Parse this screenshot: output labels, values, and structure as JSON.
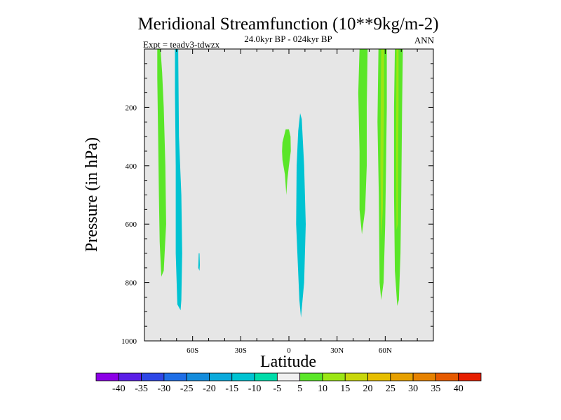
{
  "chart_data": {
    "type": "contour",
    "title": "Meridional Streamfunction (10**9kg/m-2)",
    "subtitle": "24.0kyr BP - 024kyr BP",
    "left_label": "Expt = teady3-tdwzx",
    "right_label": "ANN",
    "xlabel": "Latitude",
    "ylabel": "Pressure (in hPa)",
    "xlim": [
      -90,
      90
    ],
    "ylim": [
      1000,
      0
    ],
    "x_ticks": [
      {
        "value": -60,
        "label": "60S"
      },
      {
        "value": -30,
        "label": "30S"
      },
      {
        "value": 0,
        "label": "0"
      },
      {
        "value": 30,
        "label": "30N"
      },
      {
        "value": 60,
        "label": "60N"
      }
    ],
    "y_ticks": [
      {
        "value": 200,
        "label": "200"
      },
      {
        "value": 400,
        "label": "400"
      },
      {
        "value": 600,
        "label": "600"
      },
      {
        "value": 800,
        "label": "800"
      },
      {
        "value": 1000,
        "label": "1000"
      }
    ],
    "background_color": "#e6e6e6",
    "colorbar": {
      "colors": [
        "#8c00e6",
        "#5a1ee6",
        "#2d46e6",
        "#1e6ee6",
        "#148cdc",
        "#0aaadc",
        "#00c3d2",
        "#00dcaa",
        "#f0f0f0",
        "#5ae628",
        "#9be614",
        "#c8d70a",
        "#e6be00",
        "#e6a000",
        "#e68200",
        "#e65a00",
        "#e61e00"
      ],
      "labels": [
        "-40",
        "-35",
        "-30",
        "-25",
        "-20",
        "-15",
        "-10",
        "-5",
        "5",
        "10",
        "15",
        "20",
        "25",
        "30",
        "35",
        "40"
      ]
    },
    "features": [
      {
        "name": "sh-high-lat-positive",
        "level": 10,
        "color": "#5ae628",
        "outline": [
          [
            -82,
            0
          ],
          [
            -80,
            0
          ],
          [
            -79,
            80
          ],
          [
            -78,
            200
          ],
          [
            -77,
            400
          ],
          [
            -76.5,
            600
          ],
          [
            -78,
            760
          ],
          [
            -79.5,
            780
          ],
          [
            -80.5,
            660
          ],
          [
            -81,
            500
          ],
          [
            -81.5,
            300
          ],
          [
            -82,
            100
          ]
        ]
      },
      {
        "name": "sh-high-lat-negative",
        "level": -10,
        "color": "#00c3d2",
        "outline": [
          [
            -71,
            0
          ],
          [
            -69,
            0
          ],
          [
            -68.5,
            300
          ],
          [
            -67,
            500
          ],
          [
            -66.5,
            700
          ],
          [
            -67,
            860
          ],
          [
            -67.5,
            895
          ],
          [
            -69.5,
            875
          ],
          [
            -70.5,
            700
          ],
          [
            -70.5,
            400
          ],
          [
            -71,
            150
          ]
        ]
      },
      {
        "name": "sh-mid-lat-negative-small",
        "level": -10,
        "color": "#00c3d2",
        "outline": [
          [
            -56.2,
            700
          ],
          [
            -55.7,
            700
          ],
          [
            -55.5,
            740
          ],
          [
            -55.7,
            760
          ],
          [
            -56.5,
            750
          ]
        ]
      },
      {
        "name": "equatorial-positive",
        "level": 10,
        "color": "#5ae628",
        "outline": [
          [
            -4,
            320
          ],
          [
            -2,
            275
          ],
          [
            0,
            275
          ],
          [
            1,
            300
          ],
          [
            1.2,
            350
          ],
          [
            0,
            400
          ],
          [
            -1,
            450
          ],
          [
            -1.6,
            500
          ],
          [
            -2.5,
            430
          ],
          [
            -4,
            380
          ],
          [
            -4.3,
            350
          ]
        ]
      },
      {
        "name": "equatorial-negative",
        "level": -10,
        "color": "#00c3d2",
        "outline": [
          [
            7,
            220
          ],
          [
            8,
            240
          ],
          [
            9.5,
            400
          ],
          [
            10.5,
            600
          ],
          [
            9.5,
            800
          ],
          [
            7.5,
            920
          ],
          [
            6.5,
            860
          ],
          [
            4.5,
            600
          ],
          [
            4.8,
            400
          ],
          [
            5.8,
            280
          ]
        ]
      },
      {
        "name": "nh-mid-lat-positive",
        "level": 10,
        "color": "#5ae628",
        "outline": [
          [
            44,
            0
          ],
          [
            49,
            0
          ],
          [
            48.5,
            200
          ],
          [
            48.5,
            400
          ],
          [
            47.5,
            550
          ],
          [
            45.5,
            635
          ],
          [
            44,
            550
          ],
          [
            44,
            350
          ],
          [
            43.2,
            150
          ]
        ]
      },
      {
        "name": "nh-60n-positive",
        "level": 10,
        "color": "#5ae628",
        "outline": [
          [
            55.8,
            0
          ],
          [
            61,
            0
          ],
          [
            61,
            200
          ],
          [
            60.5,
            400
          ],
          [
            60,
            600
          ],
          [
            59,
            800
          ],
          [
            57.5,
            860
          ],
          [
            56.5,
            800
          ],
          [
            56,
            500
          ],
          [
            55.2,
            250
          ]
        ]
      },
      {
        "name": "nh-60n-core",
        "level": 15,
        "color": "#9be614",
        "outline": [
          [
            57.5,
            0
          ],
          [
            59.3,
            0
          ],
          [
            59.3,
            200
          ],
          [
            58.8,
            400
          ],
          [
            58.5,
            550
          ],
          [
            57.5,
            650
          ],
          [
            57,
            400
          ],
          [
            57.3,
            100
          ]
        ]
      },
      {
        "name": "nh-high-lat-positive",
        "level": 10,
        "color": "#5ae628",
        "outline": [
          [
            66,
            0
          ],
          [
            71,
            0
          ],
          [
            70.5,
            200
          ],
          [
            70,
            500
          ],
          [
            69.5,
            700
          ],
          [
            68.5,
            860
          ],
          [
            67.5,
            880
          ],
          [
            66,
            760
          ],
          [
            65.5,
            500
          ],
          [
            65.5,
            200
          ]
        ]
      },
      {
        "name": "nh-high-lat-core",
        "level": 15,
        "color": "#9be614",
        "outline": [
          [
            67,
            0
          ],
          [
            68.3,
            0
          ],
          [
            68.3,
            200
          ],
          [
            68,
            400
          ],
          [
            67.8,
            600
          ],
          [
            67,
            620
          ],
          [
            66.8,
            300
          ]
        ]
      }
    ]
  }
}
